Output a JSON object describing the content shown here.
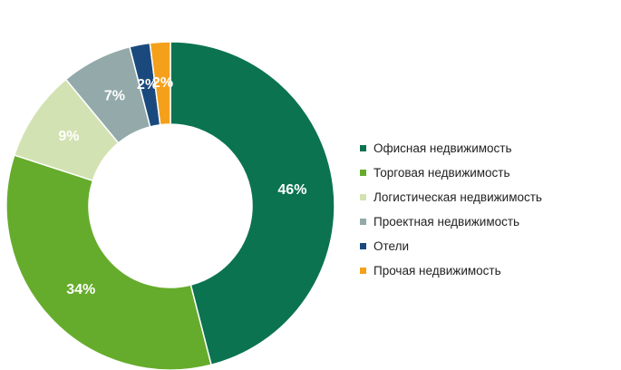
{
  "chart_data": {
    "type": "pie",
    "categories": [
      "Офисная недвижимость",
      "Торговая недвижимость",
      "Логистическая недвижимость",
      "Проектная недвижимость",
      "Отели",
      "Прочая недвижимость"
    ],
    "values": [
      46,
      34,
      9,
      7,
      2,
      2
    ],
    "labels": [
      "46%",
      "34%",
      "9%",
      "7%",
      "2%",
      "2%"
    ],
    "colors": [
      "#0b7350",
      "#66ac2c",
      "#d3e2b2",
      "#93a9aa",
      "#1a4a7d",
      "#f5a01b"
    ],
    "donut": true,
    "legend_placement": "right"
  }
}
